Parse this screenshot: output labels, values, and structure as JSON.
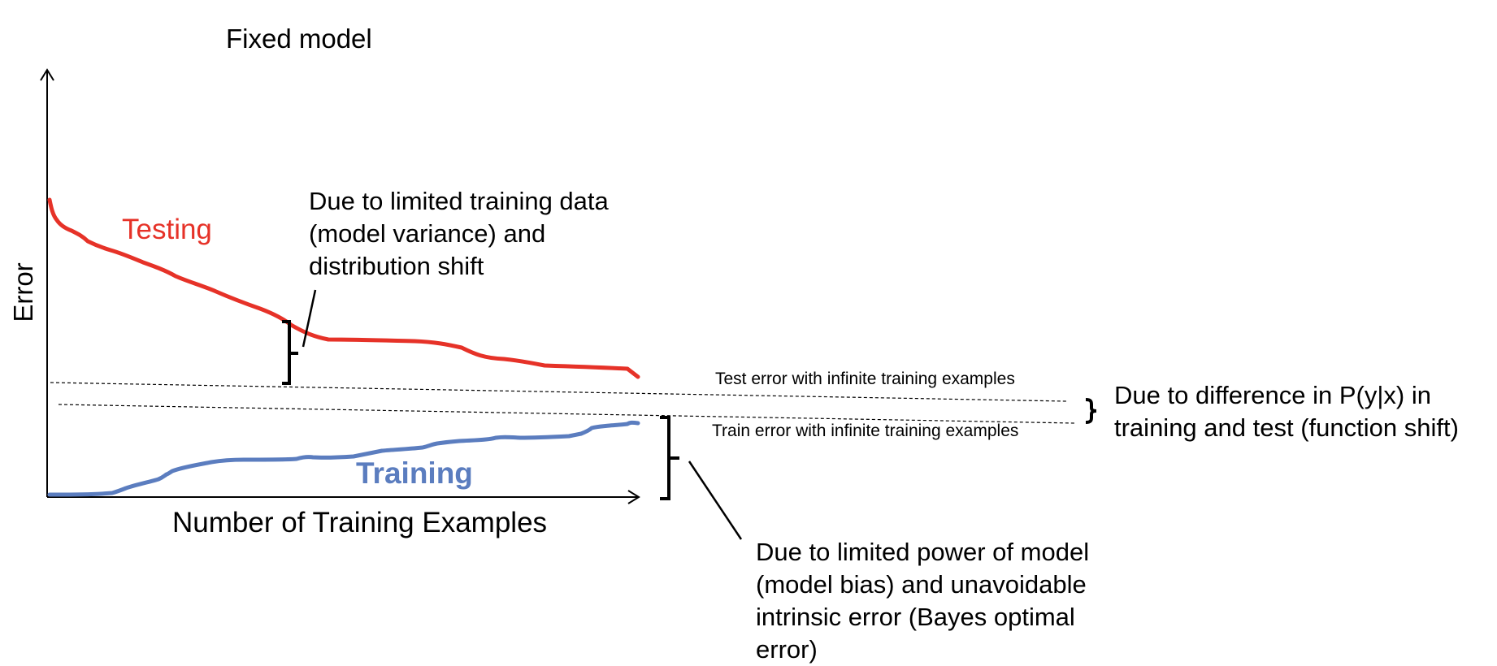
{
  "title": "Fixed model",
  "axes": {
    "xlabel": "Number of Training Examples",
    "ylabel": "Error"
  },
  "series": {
    "testing": {
      "name": "Testing",
      "color": "#e63228"
    },
    "training": {
      "name": "Training",
      "color": "#5b7dbf"
    }
  },
  "reference_lines": {
    "test": "Test error with infinite training examples",
    "train": "Train error with infinite training examples"
  },
  "annotations": {
    "variance": [
      "Due to limited training data",
      "(model variance) and",
      "distribution shift"
    ],
    "bias": [
      "Due to limited power of model",
      "(model bias) and unavoidable",
      "intrinsic error (Bayes optimal",
      "error)"
    ],
    "function_shift": [
      "Due to difference in P(y|x) in",
      "training and test (function shift)"
    ]
  },
  "colors": {
    "axis": "#000000",
    "background": "#ffffff"
  }
}
